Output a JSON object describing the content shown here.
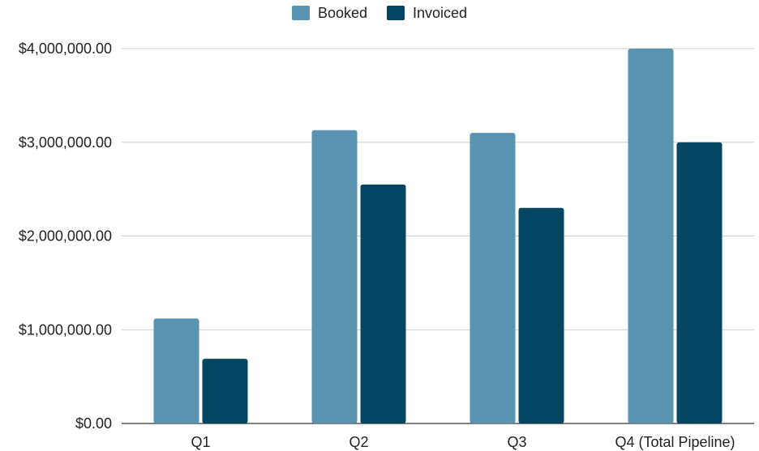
{
  "chart_data": {
    "type": "bar",
    "title": "",
    "xlabel": "",
    "ylabel": "",
    "categories": [
      "Q1",
      "Q2",
      "Q3",
      "Q4 (Total Pipeline)"
    ],
    "series": [
      {
        "name": "Booked",
        "color": "#5a93b0",
        "values": [
          1120000,
          3130000,
          3100000,
          4000000
        ]
      },
      {
        "name": "Invoiced",
        "color": "#044562",
        "values": [
          690000,
          2550000,
          2300000,
          3000000
        ]
      }
    ],
    "ylim": [
      0,
      4000000
    ],
    "yticks": [
      0,
      1000000,
      2000000,
      3000000,
      4000000
    ],
    "ytick_labels": [
      "$0.00",
      "$1,000,000.00",
      "$2,000,000.00",
      "$3,000,000.00",
      "$4,000,000.00"
    ],
    "grid": true,
    "legend_position": "top-center"
  }
}
